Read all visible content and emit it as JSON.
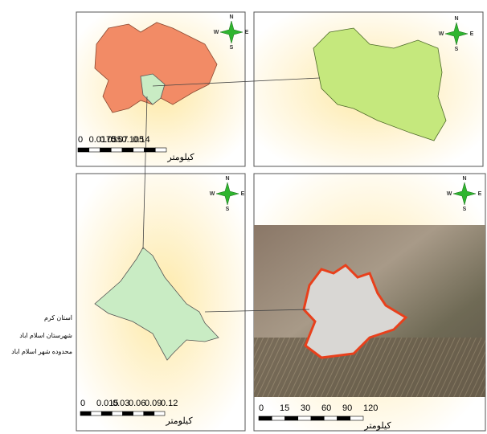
{
  "compass": {
    "n": "N",
    "s": "S",
    "e": "E",
    "w": "W"
  },
  "panels": [
    {
      "scale_labels": [
        "0",
        "0.0175",
        "0.035",
        "0.07",
        "0.105",
        "0.14"
      ],
      "unit": "کیلومتر"
    },
    {
      "scale_labels": [
        "0",
        "0.015",
        "0.03",
        "0.06",
        "0.09",
        "0.12"
      ],
      "unit": "کیلومتر"
    },
    {
      "scale_labels": [
        "0",
        "15",
        "30",
        "60",
        "90",
        "120"
      ],
      "unit": "کیلومتر"
    }
  ],
  "legend": [
    "استان کرم",
    "شهرستان اسلام اباد",
    "محدوده شهر اسلام اباد"
  ]
}
